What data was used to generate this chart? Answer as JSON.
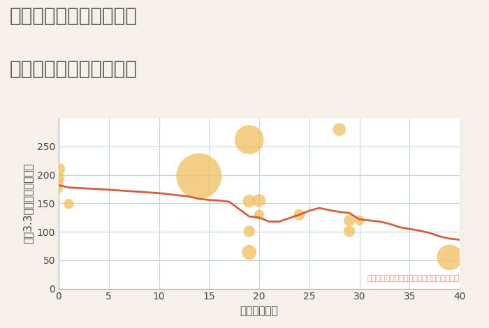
{
  "title_line1": "東京都足立区西竹の塚の",
  "title_line2": "築年数別中古戸建て価格",
  "xlabel": "築年数（年）",
  "ylabel": "坪（3.3㎡）単価（万円）",
  "background_color": "#f5f0e8",
  "plot_background": "#ffffff",
  "scatter_x": [
    0,
    0,
    0,
    0,
    1,
    14,
    19,
    19,
    19,
    19,
    20,
    20,
    24,
    28,
    29,
    29,
    30,
    39
  ],
  "scatter_y": [
    210,
    195,
    185,
    175,
    149,
    198,
    262,
    154,
    101,
    64,
    130,
    155,
    130,
    280,
    120,
    101,
    120,
    55
  ],
  "scatter_size": [
    180,
    140,
    100,
    70,
    110,
    2200,
    900,
    180,
    140,
    230,
    110,
    180,
    140,
    180,
    140,
    140,
    110,
    700
  ],
  "scatter_color": "#f0c060",
  "scatter_alpha": 0.75,
  "line_x": [
    0,
    1,
    2,
    3,
    4,
    5,
    10,
    13,
    14,
    15,
    16,
    17,
    18,
    19,
    20,
    21,
    22,
    23,
    24,
    25,
    26,
    27,
    28,
    29,
    30,
    31,
    32,
    33,
    34,
    35,
    36,
    37,
    38,
    39,
    40
  ],
  "line_y": [
    182,
    178,
    177,
    176,
    175,
    174,
    168,
    162,
    158,
    156,
    155,
    153,
    140,
    127,
    125,
    118,
    118,
    124,
    130,
    137,
    142,
    138,
    135,
    133,
    122,
    120,
    118,
    114,
    108,
    105,
    102,
    98,
    92,
    88,
    86
  ],
  "line_color": "#d45f3c",
  "line_width": 2.0,
  "xlim": [
    0,
    40
  ],
  "ylim": [
    0,
    300
  ],
  "xticks": [
    0,
    5,
    10,
    15,
    20,
    25,
    30,
    35,
    40
  ],
  "yticks": [
    0,
    50,
    100,
    150,
    200,
    250
  ],
  "grid_color": "#c8d4e0",
  "annotation": "円の大きさは、取引のあった物件面積を示す",
  "annotation_color": "#e8927a",
  "title_fontsize": 20,
  "label_fontsize": 11,
  "tick_fontsize": 10,
  "annotation_fontsize": 8
}
